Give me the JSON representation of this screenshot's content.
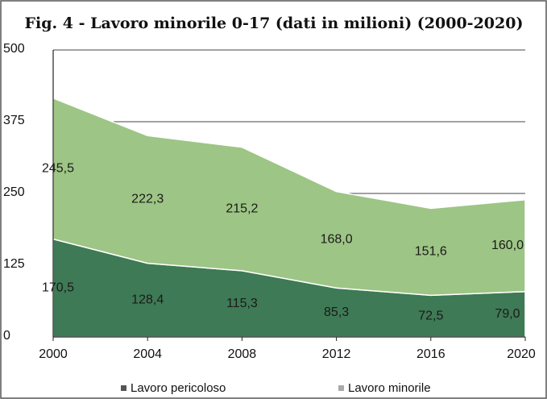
{
  "chart_data": {
    "type": "stacked_area",
    "title": "Fig. 4 - Lavoro minorile 0-17 (dati in milioni) (2000-2020)",
    "categories": [
      "2000",
      "2004",
      "2008",
      "2012",
      "2016",
      "2020"
    ],
    "series": [
      {
        "name": "Lavoro pericoloso",
        "color": "#3e7a55",
        "values": [
          170.5,
          128.4,
          115.3,
          85.3,
          72.5,
          79.0
        ],
        "value_labels": [
          "170,5",
          "128,4",
          "115,3",
          "85,3",
          "72,5",
          "79,0"
        ]
      },
      {
        "name": "Lavoro minorile",
        "color": "#9dc585",
        "values": [
          245.5,
          222.3,
          215.2,
          168.0,
          151.6,
          160.0
        ],
        "value_labels": [
          "245,5",
          "222,3",
          "215,2",
          "168,0",
          "151,6",
          "160,0"
        ]
      }
    ],
    "ylim": [
      0,
      500
    ],
    "yticks": [
      0,
      125,
      250,
      375,
      500
    ],
    "grid": true,
    "legend": "bottom"
  }
}
